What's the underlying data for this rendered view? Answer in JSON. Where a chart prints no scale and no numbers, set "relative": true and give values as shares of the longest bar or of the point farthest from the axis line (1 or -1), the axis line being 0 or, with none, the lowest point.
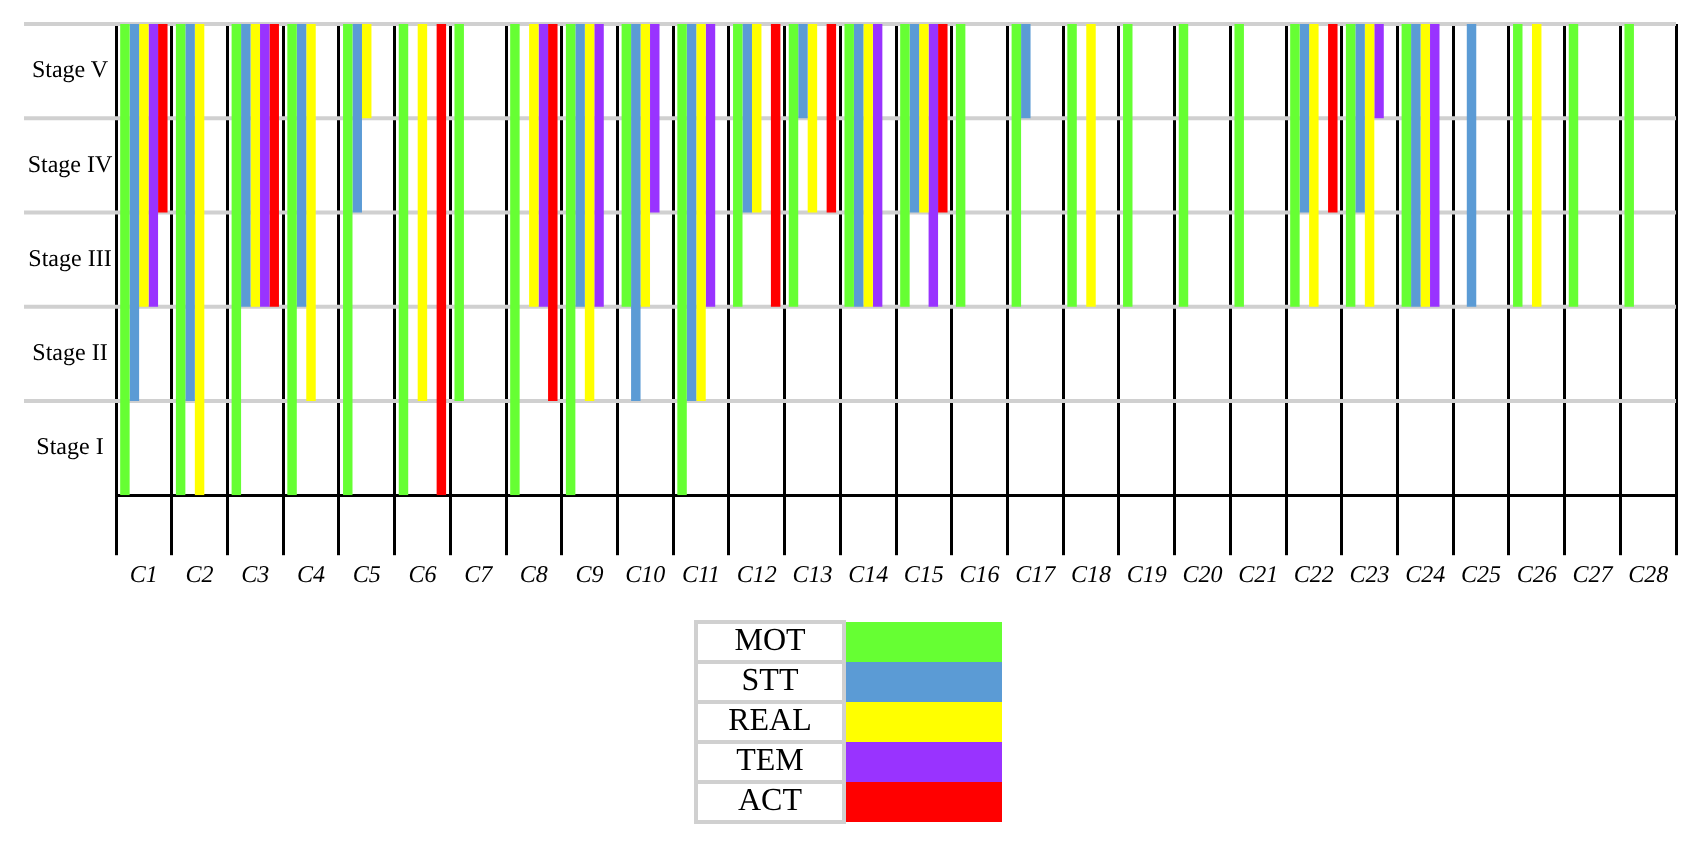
{
  "chart_data": {
    "type": "bar",
    "relative": true,
    "categories": [
      "C1",
      "C2",
      "C3",
      "C4",
      "C5",
      "C6",
      "C7",
      "C8",
      "C9",
      "C10",
      "C11",
      "C12",
      "C13",
      "C14",
      "C15",
      "C16",
      "C17",
      "C18",
      "C19",
      "C20",
      "C21",
      "C22",
      "C23",
      "C24",
      "C25",
      "C26",
      "C27",
      "C28"
    ],
    "annotations": [
      "Stage V",
      "Stage IV",
      "Stage III",
      "Stage II",
      "Stage I"
    ],
    "grid": true,
    "legend": "bottom",
    "series": [
      {
        "name": "MOT",
        "color": "#66ff33",
        "values": [
          -1,
          -1,
          -1,
          -1,
          -1,
          -1,
          -0.8,
          -1,
          -1,
          -0.6,
          -1,
          -0.6,
          -0.6,
          -0.6,
          -0.6,
          -0.6,
          -0.6,
          -0.6,
          -0.6,
          -0.6,
          -0.6,
          -0.6,
          -0.6,
          -0.6,
          null,
          -0.6,
          -0.6,
          -0.6
        ]
      },
      {
        "name": "STT",
        "color": "#5b9bd5",
        "values": [
          -0.8,
          -0.8,
          -0.6,
          -0.6,
          -0.4,
          null,
          null,
          null,
          -0.6,
          -0.8,
          -0.8,
          -0.4,
          -0.2,
          -0.6,
          -0.4,
          null,
          -0.2,
          null,
          null,
          null,
          null,
          -0.4,
          -0.4,
          -0.6,
          -0.6,
          null,
          null,
          null
        ]
      },
      {
        "name": "REAL",
        "color": "#ffff00",
        "values": [
          -0.6,
          -1,
          -0.6,
          -0.8,
          -0.2,
          -0.8,
          null,
          -0.6,
          -0.8,
          -0.6,
          -0.8,
          -0.4,
          -0.4,
          -0.6,
          -0.4,
          null,
          null,
          -0.6,
          null,
          null,
          null,
          -0.6,
          -0.6,
          -0.6,
          null,
          -0.6,
          null,
          null
        ]
      },
      {
        "name": "TEM",
        "color": "#9933ff",
        "values": [
          -0.6,
          null,
          -0.6,
          null,
          null,
          null,
          null,
          -0.6,
          -0.6,
          -0.4,
          -0.6,
          null,
          null,
          -0.6,
          -0.6,
          null,
          null,
          null,
          null,
          null,
          null,
          null,
          -0.2,
          -0.6,
          null,
          null,
          null,
          null
        ]
      },
      {
        "name": "ACT",
        "color": "#ff0000",
        "values": [
          -0.4,
          null,
          -0.6,
          null,
          null,
          -1,
          null,
          -0.8,
          null,
          null,
          null,
          -0.6,
          -0.4,
          null,
          -0.4,
          null,
          null,
          null,
          null,
          null,
          null,
          -0.4,
          null,
          null,
          null,
          null,
          null,
          null
        ]
      }
    ]
  }
}
